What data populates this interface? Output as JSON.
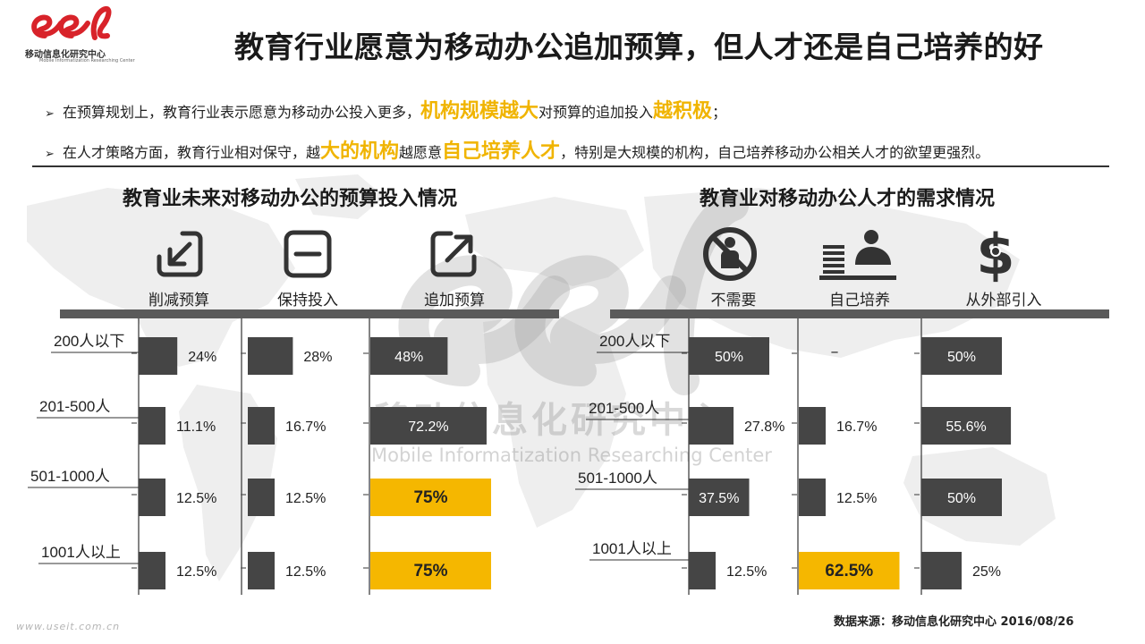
{
  "logo": {
    "text_cn": "移动信息化研究中心",
    "text_en": "Mobile Informatization Researching Center"
  },
  "page_title": "教育行业愿意为移动办公追加预算，但人才还是自己培养的好",
  "bullets": [
    {
      "pre": "在预算规划上，教育行业表示愿意为移动办公投入更多，",
      "hl1": "机构规模越大",
      "mid": "对预算的追加投入",
      "hl2": "越积极",
      "post": "；"
    },
    {
      "pre": "在人才策略方面，教育行业相对保守，越",
      "hl1": "大的机构",
      "mid": "越愿意",
      "hl2": "自己培养人才",
      "post": "，特别是大规模的机构，自己培养移动办公相关人才的欲望更强烈。"
    }
  ],
  "watermark": {
    "cn": "移动信息化研究中心",
    "en": "Mobile  Informatization Researching Center"
  },
  "source": "数据来源：移动信息化研究中心 2016/08/26",
  "url": "www.useit.com.cn",
  "colors": {
    "bar": "#454545",
    "highlight": "#f5b700",
    "header_bar": "#5a5a5a",
    "highlight_text": "#f0b400"
  },
  "icons": {
    "left": [
      "arrow-down-left-icon",
      "minus-box-icon",
      "arrow-up-right-icon"
    ],
    "right": [
      "no-person-icon",
      "person-at-desk-icon",
      "dollar-person-icon"
    ]
  },
  "chart_data": [
    {
      "type": "bar",
      "title": "教育业未来对移动办公的预算投入情况",
      "categories": [
        "200人以下",
        "201-500人",
        "501-1000人",
        "1001人以上"
      ],
      "series": [
        {
          "name": "削减预算",
          "values": [
            24,
            11.1,
            12.5,
            12.5
          ],
          "labels": [
            "24%",
            "11.1%",
            "12.5%",
            "12.5%"
          ]
        },
        {
          "name": "保持投入",
          "values": [
            28,
            16.7,
            12.5,
            12.5
          ],
          "labels": [
            "28%",
            "16.7%",
            "12.5%",
            "12.5%"
          ]
        },
        {
          "name": "追加预算",
          "values": [
            48,
            72.2,
            75,
            75
          ],
          "labels": [
            "48%",
            "72.2%",
            "75%",
            "75%"
          ],
          "highlight": [
            false,
            false,
            true,
            true
          ]
        }
      ]
    },
    {
      "type": "bar",
      "title": "教育业对移动办公人才的需求情况",
      "categories": [
        "200人以下",
        "201-500人",
        "501-1000人",
        "1001人以上"
      ],
      "series": [
        {
          "name": "不需要",
          "values": [
            50,
            27.8,
            37.5,
            12.5
          ],
          "labels": [
            "50%",
            "27.8%",
            "37.5%",
            "12.5%"
          ]
        },
        {
          "name": "自己培养",
          "values": [
            0,
            16.7,
            12.5,
            62.5
          ],
          "labels": [
            "–",
            "16.7%",
            "12.5%",
            "62.5%"
          ],
          "highlight": [
            false,
            false,
            false,
            true
          ]
        },
        {
          "name": "从外部引入",
          "values": [
            50,
            55.6,
            50,
            25
          ],
          "labels": [
            "50%",
            "55.6%",
            "50%",
            "25%"
          ]
        }
      ]
    }
  ]
}
